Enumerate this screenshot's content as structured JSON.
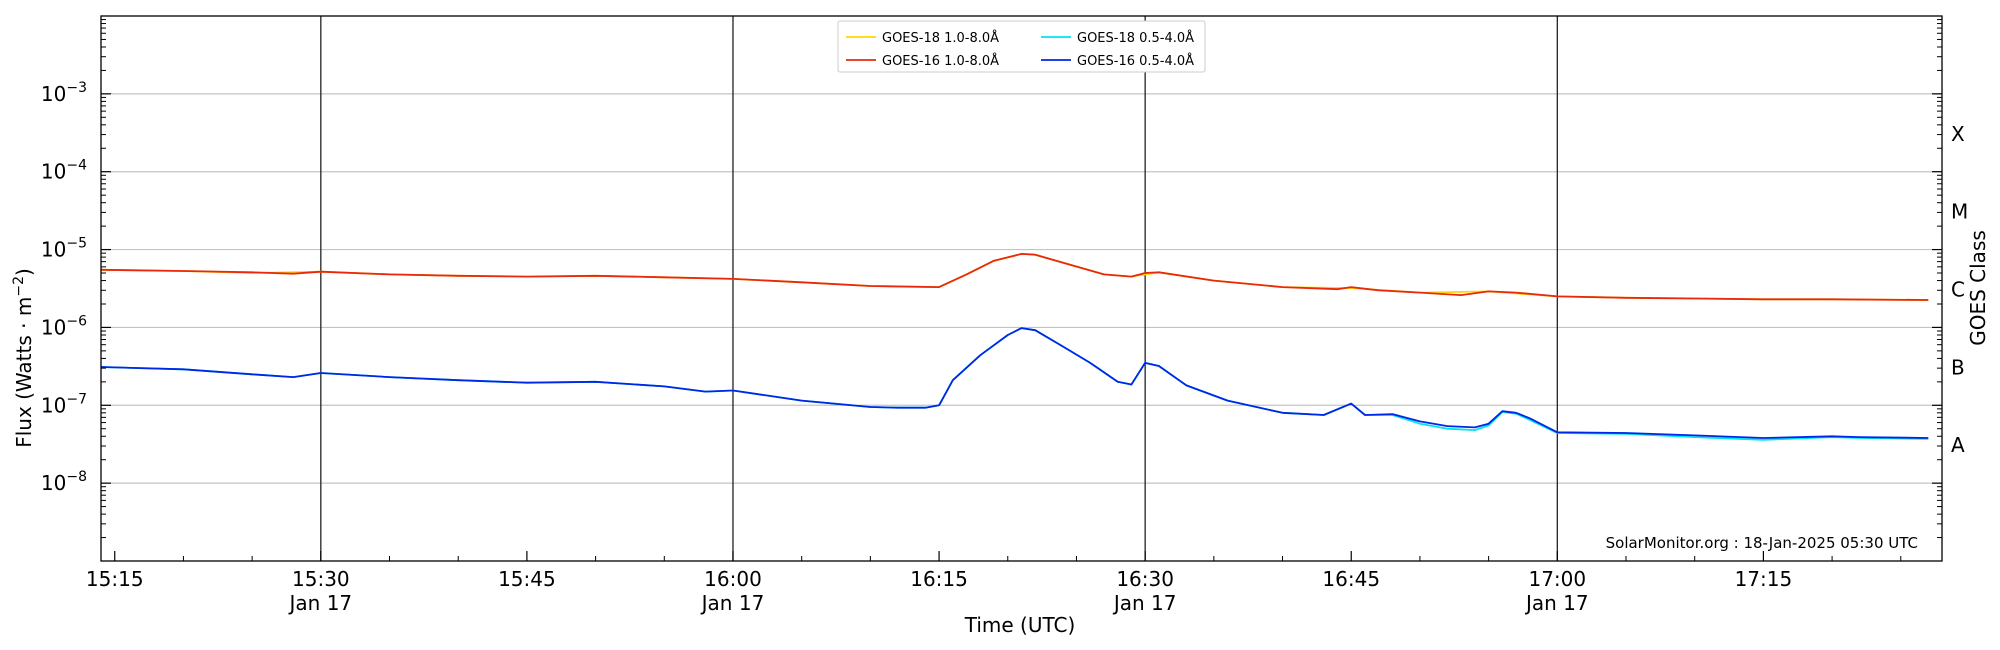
{
  "chart_data": {
    "type": "line",
    "xlabel": "Time (UTC)",
    "ylabel": "Flux (Watts · m",
    "ylabel_sup": "−2",
    "ylabel_close": ")",
    "right_axis_label": "GOES Class",
    "y_scale": "log",
    "ylim": [
      1e-09,
      0.01
    ],
    "xlim": [
      "15:14",
      "17:28"
    ],
    "grid": "horizontal at each decade",
    "legend_position": "top-center",
    "footer": "SolarMonitor.org : 18-Jan-2025 05:30 UTC",
    "x_ticks": [
      {
        "time": "15:15",
        "label": "15:15",
        "sublabel": ""
      },
      {
        "time": "15:30",
        "label": "15:30",
        "sublabel": "Jan 17"
      },
      {
        "time": "15:45",
        "label": "15:45",
        "sublabel": ""
      },
      {
        "time": "16:00",
        "label": "16:00",
        "sublabel": "Jan 17"
      },
      {
        "time": "16:15",
        "label": "16:15",
        "sublabel": ""
      },
      {
        "time": "16:30",
        "label": "16:30",
        "sublabel": "Jan 17"
      },
      {
        "time": "16:45",
        "label": "16:45",
        "sublabel": ""
      },
      {
        "time": "17:00",
        "label": "17:00",
        "sublabel": "Jan 17"
      },
      {
        "time": "17:15",
        "label": "17:15",
        "sublabel": ""
      }
    ],
    "vertical_lines": [
      "15:30",
      "16:00",
      "16:30",
      "17:00"
    ],
    "y_ticks": [
      {
        "value": 1e-08,
        "base": "10",
        "exp": "−8"
      },
      {
        "value": 1e-07,
        "base": "10",
        "exp": "−7"
      },
      {
        "value": 1e-06,
        "base": "10",
        "exp": "−6"
      },
      {
        "value": 1e-05,
        "base": "10",
        "exp": "−5"
      },
      {
        "value": 0.0001,
        "base": "10",
        "exp": "−4"
      },
      {
        "value": 0.001,
        "base": "10",
        "exp": "−3"
      }
    ],
    "goes_classes": [
      {
        "label": "A",
        "value": 3.16e-08
      },
      {
        "label": "B",
        "value": 3.16e-07
      },
      {
        "label": "C",
        "value": 3.16e-06
      },
      {
        "label": "M",
        "value": 3.16e-05
      },
      {
        "label": "X",
        "value": 0.000316
      }
    ],
    "legend": [
      {
        "name": "GOES-18 1.0-8.0Å",
        "color": "#ffd700",
        "column": 0,
        "row": 0
      },
      {
        "name": "GOES-16 1.0-8.0Å",
        "color": "#e8290b",
        "column": 0,
        "row": 1
      },
      {
        "name": "GOES-18 0.5-4.0Å",
        "color": "#00e5ee",
        "column": 1,
        "row": 0
      },
      {
        "name": "GOES-16 0.5-4.0Å",
        "color": "#0026e6",
        "column": 1,
        "row": 1
      }
    ],
    "series": [
      {
        "name": "GOES-18 1.0-8.0Å",
        "color": "#ffd700",
        "x": [
          "15:14",
          "15:20",
          "15:25",
          "15:30",
          "15:35",
          "15:40",
          "15:45",
          "15:50",
          "15:55",
          "16:00",
          "16:05",
          "16:10",
          "16:15",
          "16:17",
          "16:19",
          "16:21",
          "16:22",
          "16:24",
          "16:27",
          "16:29",
          "16:31",
          "16:35",
          "16:40",
          "16:45",
          "16:50",
          "16:55",
          "17:00",
          "17:05",
          "17:10",
          "17:15",
          "17:20",
          "17:27"
        ],
        "values": [
          5.5e-06,
          5.3e-06,
          5e-06,
          5.2e-06,
          4.8e-06,
          4.6e-06,
          4.5e-06,
          4.6e-06,
          4.4e-06,
          4.2e-06,
          3.8e-06,
          3.4e-06,
          3.3e-06,
          4.8e-06,
          7.2e-06,
          8.8e-06,
          8.6e-06,
          6.8e-06,
          4.8e-06,
          4.5e-06,
          5.1e-06,
          4e-06,
          3.3e-06,
          3.2e-06,
          2.8e-06,
          2.9e-06,
          2.5e-06,
          2.4e-06,
          2.35e-06,
          2.3e-06,
          2.3e-06,
          2.25e-06
        ]
      },
      {
        "name": "GOES-16 1.0-8.0Å",
        "color": "#e8290b",
        "x": [
          "15:14",
          "15:20",
          "15:25",
          "15:28",
          "15:30",
          "15:35",
          "15:40",
          "15:45",
          "15:50",
          "15:55",
          "16:00",
          "16:05",
          "16:10",
          "16:15",
          "16:17",
          "16:19",
          "16:21",
          "16:22",
          "16:24",
          "16:27",
          "16:29",
          "16:30",
          "16:31",
          "16:35",
          "16:40",
          "16:44",
          "16:45",
          "16:47",
          "16:50",
          "16:53",
          "16:55",
          "16:57",
          "17:00",
          "17:05",
          "17:10",
          "17:15",
          "17:20",
          "17:27"
        ],
        "values": [
          5.5e-06,
          5.3e-06,
          5.1e-06,
          4.9e-06,
          5.2e-06,
          4.8e-06,
          4.6e-06,
          4.5e-06,
          4.6e-06,
          4.4e-06,
          4.2e-06,
          3.8e-06,
          3.4e-06,
          3.3e-06,
          4.8e-06,
          7.2e-06,
          8.8e-06,
          8.6e-06,
          6.8e-06,
          4.8e-06,
          4.5e-06,
          5e-06,
          5.1e-06,
          4e-06,
          3.3e-06,
          3.1e-06,
          3.3e-06,
          3e-06,
          2.8e-06,
          2.6e-06,
          2.9e-06,
          2.8e-06,
          2.5e-06,
          2.4e-06,
          2.35e-06,
          2.3e-06,
          2.3e-06,
          2.25e-06
        ]
      },
      {
        "name": "GOES-18 0.5-4.0Å",
        "color": "#00e5ee",
        "x": [
          "15:14",
          "15:20",
          "15:25",
          "15:28",
          "15:30",
          "15:35",
          "15:40",
          "15:45",
          "15:50",
          "15:55",
          "15:58",
          "16:00",
          "16:05",
          "16:10",
          "16:12",
          "16:14",
          "16:15",
          "16:16",
          "16:18",
          "16:20",
          "16:21",
          "16:22",
          "16:24",
          "16:26",
          "16:28",
          "16:29",
          "16:30",
          "16:31",
          "16:33",
          "16:36",
          "16:40",
          "16:43",
          "16:45",
          "16:46",
          "16:48",
          "16:50",
          "16:52",
          "16:54",
          "16:55",
          "16:56",
          "16:57",
          "16:58",
          "17:00",
          "17:05",
          "17:10",
          "17:15",
          "17:20",
          "17:22",
          "17:27"
        ],
        "values": [
          3.1e-07,
          2.9e-07,
          2.5e-07,
          2.3e-07,
          2.6e-07,
          2.3e-07,
          2.1e-07,
          1.95e-07,
          2e-07,
          1.75e-07,
          1.5e-07,
          1.55e-07,
          1.15e-07,
          9.5e-08,
          9.3e-08,
          9.3e-08,
          1e-07,
          2.1e-07,
          4.4e-07,
          8e-07,
          9.8e-07,
          9.2e-07,
          5.7e-07,
          3.5e-07,
          2e-07,
          1.85e-07,
          3.5e-07,
          3.2e-07,
          1.8e-07,
          1.15e-07,
          8e-08,
          7.5e-08,
          1.05e-07,
          7.5e-08,
          7.5e-08,
          5.8e-08,
          5e-08,
          4.8e-08,
          5.5e-08,
          8.2e-08,
          7.8e-08,
          6.5e-08,
          4.4e-08,
          4.3e-08,
          3.9e-08,
          3.6e-08,
          3.9e-08,
          3.8e-08,
          3.7e-08
        ]
      },
      {
        "name": "GOES-16 0.5-4.0Å",
        "color": "#0026e6",
        "x": [
          "15:14",
          "15:20",
          "15:25",
          "15:28",
          "15:30",
          "15:35",
          "15:40",
          "15:45",
          "15:50",
          "15:55",
          "15:58",
          "16:00",
          "16:05",
          "16:10",
          "16:12",
          "16:14",
          "16:15",
          "16:16",
          "16:18",
          "16:20",
          "16:21",
          "16:22",
          "16:24",
          "16:26",
          "16:28",
          "16:29",
          "16:30",
          "16:31",
          "16:33",
          "16:36",
          "16:40",
          "16:43",
          "16:45",
          "16:46",
          "16:48",
          "16:50",
          "16:52",
          "16:54",
          "16:55",
          "16:56",
          "16:57",
          "16:58",
          "17:00",
          "17:05",
          "17:10",
          "17:15",
          "17:20",
          "17:22",
          "17:27"
        ],
        "values": [
          3.1e-07,
          2.9e-07,
          2.5e-07,
          2.3e-07,
          2.6e-07,
          2.3e-07,
          2.1e-07,
          1.95e-07,
          2e-07,
          1.75e-07,
          1.5e-07,
          1.55e-07,
          1.15e-07,
          9.5e-08,
          9.3e-08,
          9.3e-08,
          1e-07,
          2.1e-07,
          4.4e-07,
          8e-07,
          9.8e-07,
          9.2e-07,
          5.7e-07,
          3.5e-07,
          2e-07,
          1.85e-07,
          3.5e-07,
          3.2e-07,
          1.8e-07,
          1.15e-07,
          8e-08,
          7.5e-08,
          1.05e-07,
          7.5e-08,
          7.7e-08,
          6.2e-08,
          5.4e-08,
          5.2e-08,
          5.8e-08,
          8.4e-08,
          8e-08,
          6.8e-08,
          4.5e-08,
          4.4e-08,
          4.1e-08,
          3.8e-08,
          4e-08,
          3.9e-08,
          3.8e-08
        ]
      }
    ]
  }
}
